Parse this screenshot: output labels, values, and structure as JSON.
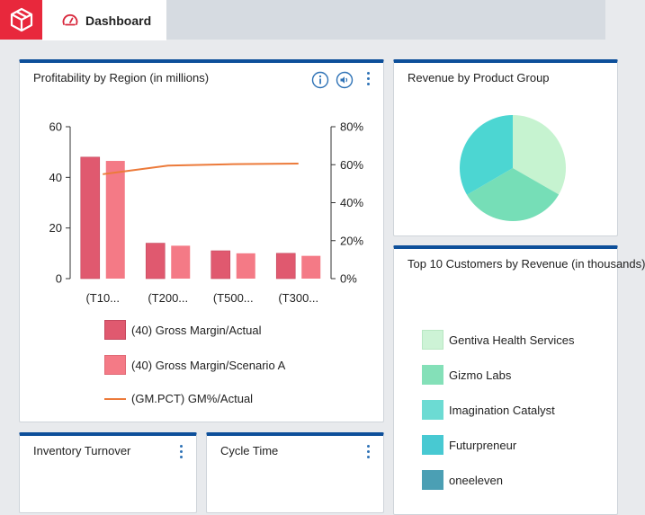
{
  "app": {
    "tab_label": "Dashboard"
  },
  "colors": {
    "brand": "#e8283c",
    "panel_accent": "#0d4f9a",
    "bar_actual": "#e0596f",
    "bar_scenario": "#f47a86",
    "line_gm": "#ec7a3a"
  },
  "panels": {
    "profitability": {
      "title": "Profitability by Region (in millions)"
    },
    "revenue": {
      "title": "Revenue by Product Group"
    },
    "customers": {
      "title": "Top 10 Customers by Revenue (in thousands)",
      "legend": [
        {
          "label": "Gentiva Health Services",
          "color": "#cdf3d6"
        },
        {
          "label": "Gizmo Labs",
          "color": "#84e0b8"
        },
        {
          "label": "Imagination Catalyst",
          "color": "#6cdbd3"
        },
        {
          "label": "Futurpreneur",
          "color": "#48c9d2"
        },
        {
          "label": "oneeleven",
          "color": "#4b9fb4"
        }
      ]
    },
    "inventory": {
      "title": "Inventory Turnover"
    },
    "cycle": {
      "title": "Cycle Time"
    }
  },
  "chart_data": [
    {
      "type": "bar",
      "title": "Profitability by Region (in millions)",
      "categories": [
        "(T10...",
        "(T200...",
        "(T500...",
        "(T300..."
      ],
      "series": [
        {
          "name": "(40) Gross Margin/Actual",
          "type": "bar",
          "values": [
            48,
            14,
            11,
            10
          ]
        },
        {
          "name": "(40) Gross Margin/Scenario A",
          "type": "bar",
          "values": [
            46.5,
            13,
            10,
            9
          ]
        },
        {
          "name": "(GM.PCT) GM%/Actual",
          "type": "line",
          "axis": "right",
          "values": [
            55,
            59.5,
            60.3,
            60.6
          ]
        }
      ],
      "ylim": [
        0,
        60
      ],
      "yticks": [
        "0",
        "20",
        "40",
        "60"
      ],
      "y2lim": [
        0,
        80
      ],
      "y2ticks": [
        "0%",
        "20%",
        "40%",
        "60%",
        "80%"
      ],
      "legend_position": "bottom"
    },
    {
      "type": "pie",
      "title": "Revenue by Product Group",
      "slices": [
        {
          "value": 33.3,
          "color": "#c6f3d0"
        },
        {
          "value": 33.3,
          "color": "#76deb7"
        },
        {
          "value": 33.4,
          "color": "#4cd6d2"
        }
      ]
    }
  ]
}
